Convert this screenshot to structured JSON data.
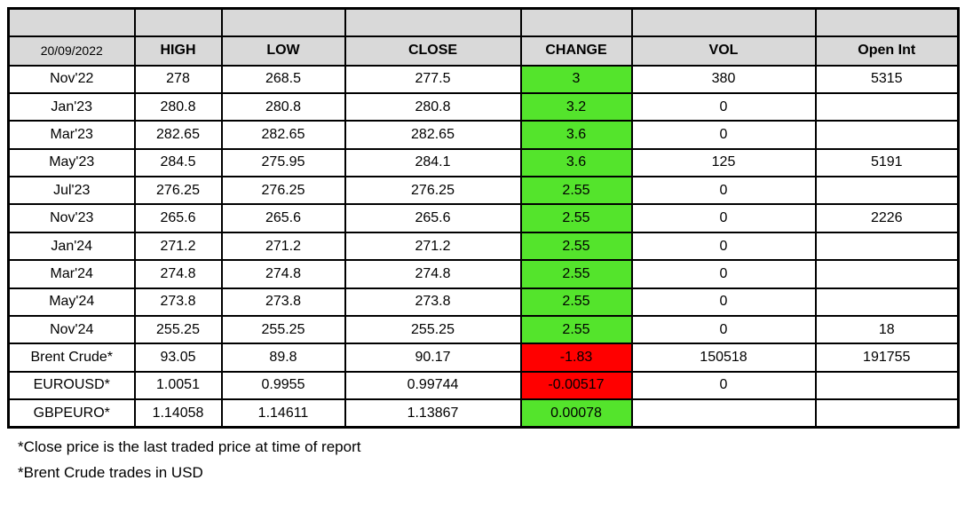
{
  "chart_data": {
    "type": "table",
    "header_row": {
      "date": "20/09/2022",
      "columns": [
        "HIGH",
        "LOW",
        "CLOSE",
        "CHANGE",
        "VOL",
        "Open Int"
      ]
    },
    "rows": [
      {
        "cells": [
          "Nov'22",
          "278",
          "268.5",
          "277.5",
          "3",
          "380",
          "5315"
        ],
        "change_color": "green"
      },
      {
        "cells": [
          "Jan'23",
          "280.8",
          "280.8",
          "280.8",
          "3.2",
          "0",
          ""
        ],
        "change_color": "green"
      },
      {
        "cells": [
          "Mar'23",
          "282.65",
          "282.65",
          "282.65",
          "3.6",
          "0",
          ""
        ],
        "change_color": "green"
      },
      {
        "cells": [
          "May'23",
          "284.5",
          "275.95",
          "284.1",
          "3.6",
          "125",
          "5191"
        ],
        "change_color": "green"
      },
      {
        "cells": [
          "Jul'23",
          "276.25",
          "276.25",
          "276.25",
          "2.55",
          "0",
          ""
        ],
        "change_color": "green"
      },
      {
        "cells": [
          "Nov'23",
          "265.6",
          "265.6",
          "265.6",
          "2.55",
          "0",
          "2226"
        ],
        "change_color": "green"
      },
      {
        "cells": [
          "Jan'24",
          "271.2",
          "271.2",
          "271.2",
          "2.55",
          "0",
          ""
        ],
        "change_color": "green"
      },
      {
        "cells": [
          "Mar'24",
          "274.8",
          "274.8",
          "274.8",
          "2.55",
          "0",
          ""
        ],
        "change_color": "green"
      },
      {
        "cells": [
          "May'24",
          "273.8",
          "273.8",
          "273.8",
          "2.55",
          "0",
          ""
        ],
        "change_color": "green"
      },
      {
        "cells": [
          "Nov'24",
          "255.25",
          "255.25",
          "255.25",
          "2.55",
          "0",
          "18"
        ],
        "change_color": "green"
      },
      {
        "cells": [
          "Brent Crude*",
          "93.05",
          "89.8",
          "90.17",
          "-1.83",
          "150518",
          "191755"
        ],
        "change_color": "red"
      },
      {
        "cells": [
          "EUROUSD*",
          "1.0051",
          "0.9955",
          "0.99744",
          "-0.00517",
          "0",
          ""
        ],
        "change_color": "red"
      },
      {
        "cells": [
          "GBPEURO*",
          "1.14058",
          "1.14611",
          "1.13867",
          "0.00078",
          "",
          ""
        ],
        "change_color": "green"
      }
    ]
  },
  "footnotes": [
    "*Close price is the last traded price at time of report",
    "*Brent Crude trades in USD"
  ],
  "colors": {
    "positive_change_bg": "#54E42C",
    "negative_change_bg": "#FF0000",
    "header_bg": "#D9D9D9",
    "border": "#000000",
    "text": "#000000"
  }
}
